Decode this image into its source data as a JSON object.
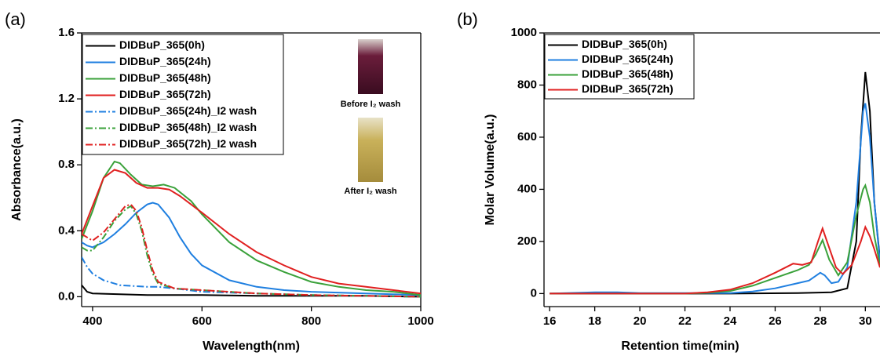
{
  "chart_data": [
    {
      "type": "line",
      "panel_label": "(a)",
      "x_label": "Wavelength(nm)",
      "y_label": "Absorbance(a.u.)",
      "xlim": [
        380,
        1000
      ],
      "ylim": [
        -0.06,
        1.6
      ],
      "xticks": [
        400,
        600,
        800,
        1000
      ],
      "yticks": [
        {
          "value": 0,
          "label": "0.0"
        },
        0.4,
        0.8,
        1.2,
        1.6
      ],
      "legend": "upper left",
      "annotations": [
        "Before I₂ wash",
        "After I₂ wash"
      ],
      "series": [
        {
          "name": "DIDBuP_365(0h)",
          "color": "#000000",
          "dash": "solid",
          "x": [
            380,
            390,
            400,
            450,
            500,
            600,
            700,
            800,
            900,
            1000
          ],
          "values": [
            0.07,
            0.03,
            0.02,
            0.015,
            0.01,
            0.01,
            0.005,
            0.005,
            0.005,
            0
          ]
        },
        {
          "name": "DIDBuP_365(24h)",
          "color": "#1f7fe0",
          "dash": "solid",
          "x": [
            380,
            390,
            400,
            420,
            440,
            460,
            480,
            500,
            510,
            520,
            540,
            560,
            580,
            600,
            650,
            700,
            750,
            800,
            900,
            1000
          ],
          "values": [
            0.33,
            0.31,
            0.3,
            0.33,
            0.38,
            0.44,
            0.51,
            0.56,
            0.57,
            0.56,
            0.48,
            0.36,
            0.26,
            0.19,
            0.1,
            0.06,
            0.04,
            0.03,
            0.02,
            0.01
          ]
        },
        {
          "name": "DIDBuP_365(48h)",
          "color": "#3aa13a",
          "dash": "solid",
          "x": [
            380,
            400,
            420,
            440,
            450,
            470,
            490,
            510,
            530,
            550,
            580,
            600,
            650,
            700,
            750,
            800,
            850,
            900,
            950,
            1000
          ],
          "values": [
            0.35,
            0.52,
            0.72,
            0.82,
            0.81,
            0.74,
            0.68,
            0.67,
            0.68,
            0.66,
            0.58,
            0.5,
            0.33,
            0.22,
            0.15,
            0.09,
            0.06,
            0.04,
            0.03,
            0.01
          ]
        },
        {
          "name": "DIDBuP_365(72h)",
          "color": "#e02020",
          "dash": "solid",
          "x": [
            380,
            400,
            420,
            440,
            460,
            480,
            500,
            520,
            540,
            560,
            600,
            650,
            700,
            750,
            800,
            850,
            900,
            950,
            1000
          ],
          "values": [
            0.38,
            0.55,
            0.72,
            0.77,
            0.75,
            0.69,
            0.66,
            0.66,
            0.65,
            0.61,
            0.51,
            0.38,
            0.27,
            0.19,
            0.12,
            0.08,
            0.06,
            0.04,
            0.02
          ]
        },
        {
          "name": "DIDBuP_365(24h)_I2 wash",
          "color": "#1f7fe0",
          "dash": "dashdot",
          "x": [
            380,
            390,
            400,
            420,
            450,
            500,
            520,
            550,
            600,
            700,
            800,
            1000
          ],
          "values": [
            0.24,
            0.18,
            0.14,
            0.1,
            0.07,
            0.06,
            0.06,
            0.05,
            0.03,
            0.02,
            0.01,
            0
          ]
        },
        {
          "name": "DIDBuP_365(48h)_I2 wash",
          "color": "#3aa13a",
          "dash": "dashdot",
          "x": [
            380,
            390,
            400,
            420,
            440,
            460,
            470,
            480,
            490,
            500,
            510,
            520,
            550,
            600,
            650,
            700,
            800,
            1000
          ],
          "values": [
            0.3,
            0.28,
            0.28,
            0.36,
            0.46,
            0.53,
            0.55,
            0.5,
            0.4,
            0.25,
            0.14,
            0.08,
            0.05,
            0.04,
            0.03,
            0.02,
            0.01,
            0
          ]
        },
        {
          "name": "DIDBuP_365(72h)_I2 wash",
          "color": "#e02020",
          "dash": "dashdot",
          "x": [
            380,
            390,
            400,
            420,
            440,
            460,
            470,
            480,
            490,
            500,
            510,
            520,
            550,
            600,
            650,
            700,
            800,
            1000
          ],
          "values": [
            0.38,
            0.36,
            0.34,
            0.39,
            0.47,
            0.55,
            0.56,
            0.52,
            0.42,
            0.28,
            0.16,
            0.09,
            0.05,
            0.04,
            0.03,
            0.02,
            0.01,
            0
          ]
        }
      ]
    },
    {
      "type": "line",
      "panel_label": "(b)",
      "x_label": "Retention time(min)",
      "y_label": "Molar Volume(a.u.)",
      "xlim": [
        15.75,
        30.65
      ],
      "ylim": [
        -50,
        1000
      ],
      "xticks": [
        16,
        18,
        20,
        22,
        24,
        26,
        28,
        30
      ],
      "yticks": [
        0,
        200,
        400,
        600,
        800,
        1000
      ],
      "legend": "upper left",
      "series": [
        {
          "name": "DIDBuP_365(0h)",
          "color": "#000000",
          "dash": "solid",
          "x": [
            16,
            20,
            24,
            27,
            28.5,
            29.2,
            29.6,
            29.8,
            30,
            30.2,
            30.4,
            30.65
          ],
          "values": [
            0,
            0,
            0,
            2,
            5,
            20,
            200,
            600,
            850,
            700,
            350,
            130
          ]
        },
        {
          "name": "DIDBuP_365(24h)",
          "color": "#1f7fe0",
          "dash": "solid",
          "x": [
            16,
            18,
            19,
            20,
            24,
            25,
            26,
            27,
            27.5,
            28,
            28.2,
            28.5,
            28.8,
            29.2,
            29.6,
            29.9,
            30,
            30.2,
            30.4,
            30.65
          ],
          "values": [
            0,
            5,
            5,
            2,
            2,
            8,
            20,
            40,
            50,
            80,
            70,
            40,
            45,
            100,
            350,
            700,
            730,
            600,
            350,
            120
          ]
        },
        {
          "name": "DIDBuP_365(48h)",
          "color": "#3aa13a",
          "dash": "solid",
          "x": [
            16,
            22,
            23,
            24,
            25,
            26,
            27,
            27.5,
            27.8,
            28.1,
            28.4,
            28.8,
            29.2,
            29.6,
            29.9,
            30,
            30.2,
            30.4,
            30.65
          ],
          "values": [
            0,
            0,
            3,
            10,
            30,
            60,
            90,
            110,
            150,
            205,
            130,
            70,
            120,
            300,
            400,
            415,
            350,
            220,
            110
          ]
        },
        {
          "name": "DIDBuP_365(72h)",
          "color": "#e02020",
          "dash": "solid",
          "x": [
            16,
            22,
            23,
            24,
            25,
            26,
            26.8,
            27.2,
            27.6,
            27.9,
            28.1,
            28.3,
            28.7,
            29,
            29.4,
            29.8,
            30,
            30.2,
            30.4,
            30.65
          ],
          "values": [
            0,
            0,
            5,
            15,
            40,
            80,
            115,
            110,
            120,
            200,
            250,
            200,
            100,
            75,
            110,
            200,
            255,
            220,
            170,
            100
          ]
        }
      ]
    }
  ]
}
